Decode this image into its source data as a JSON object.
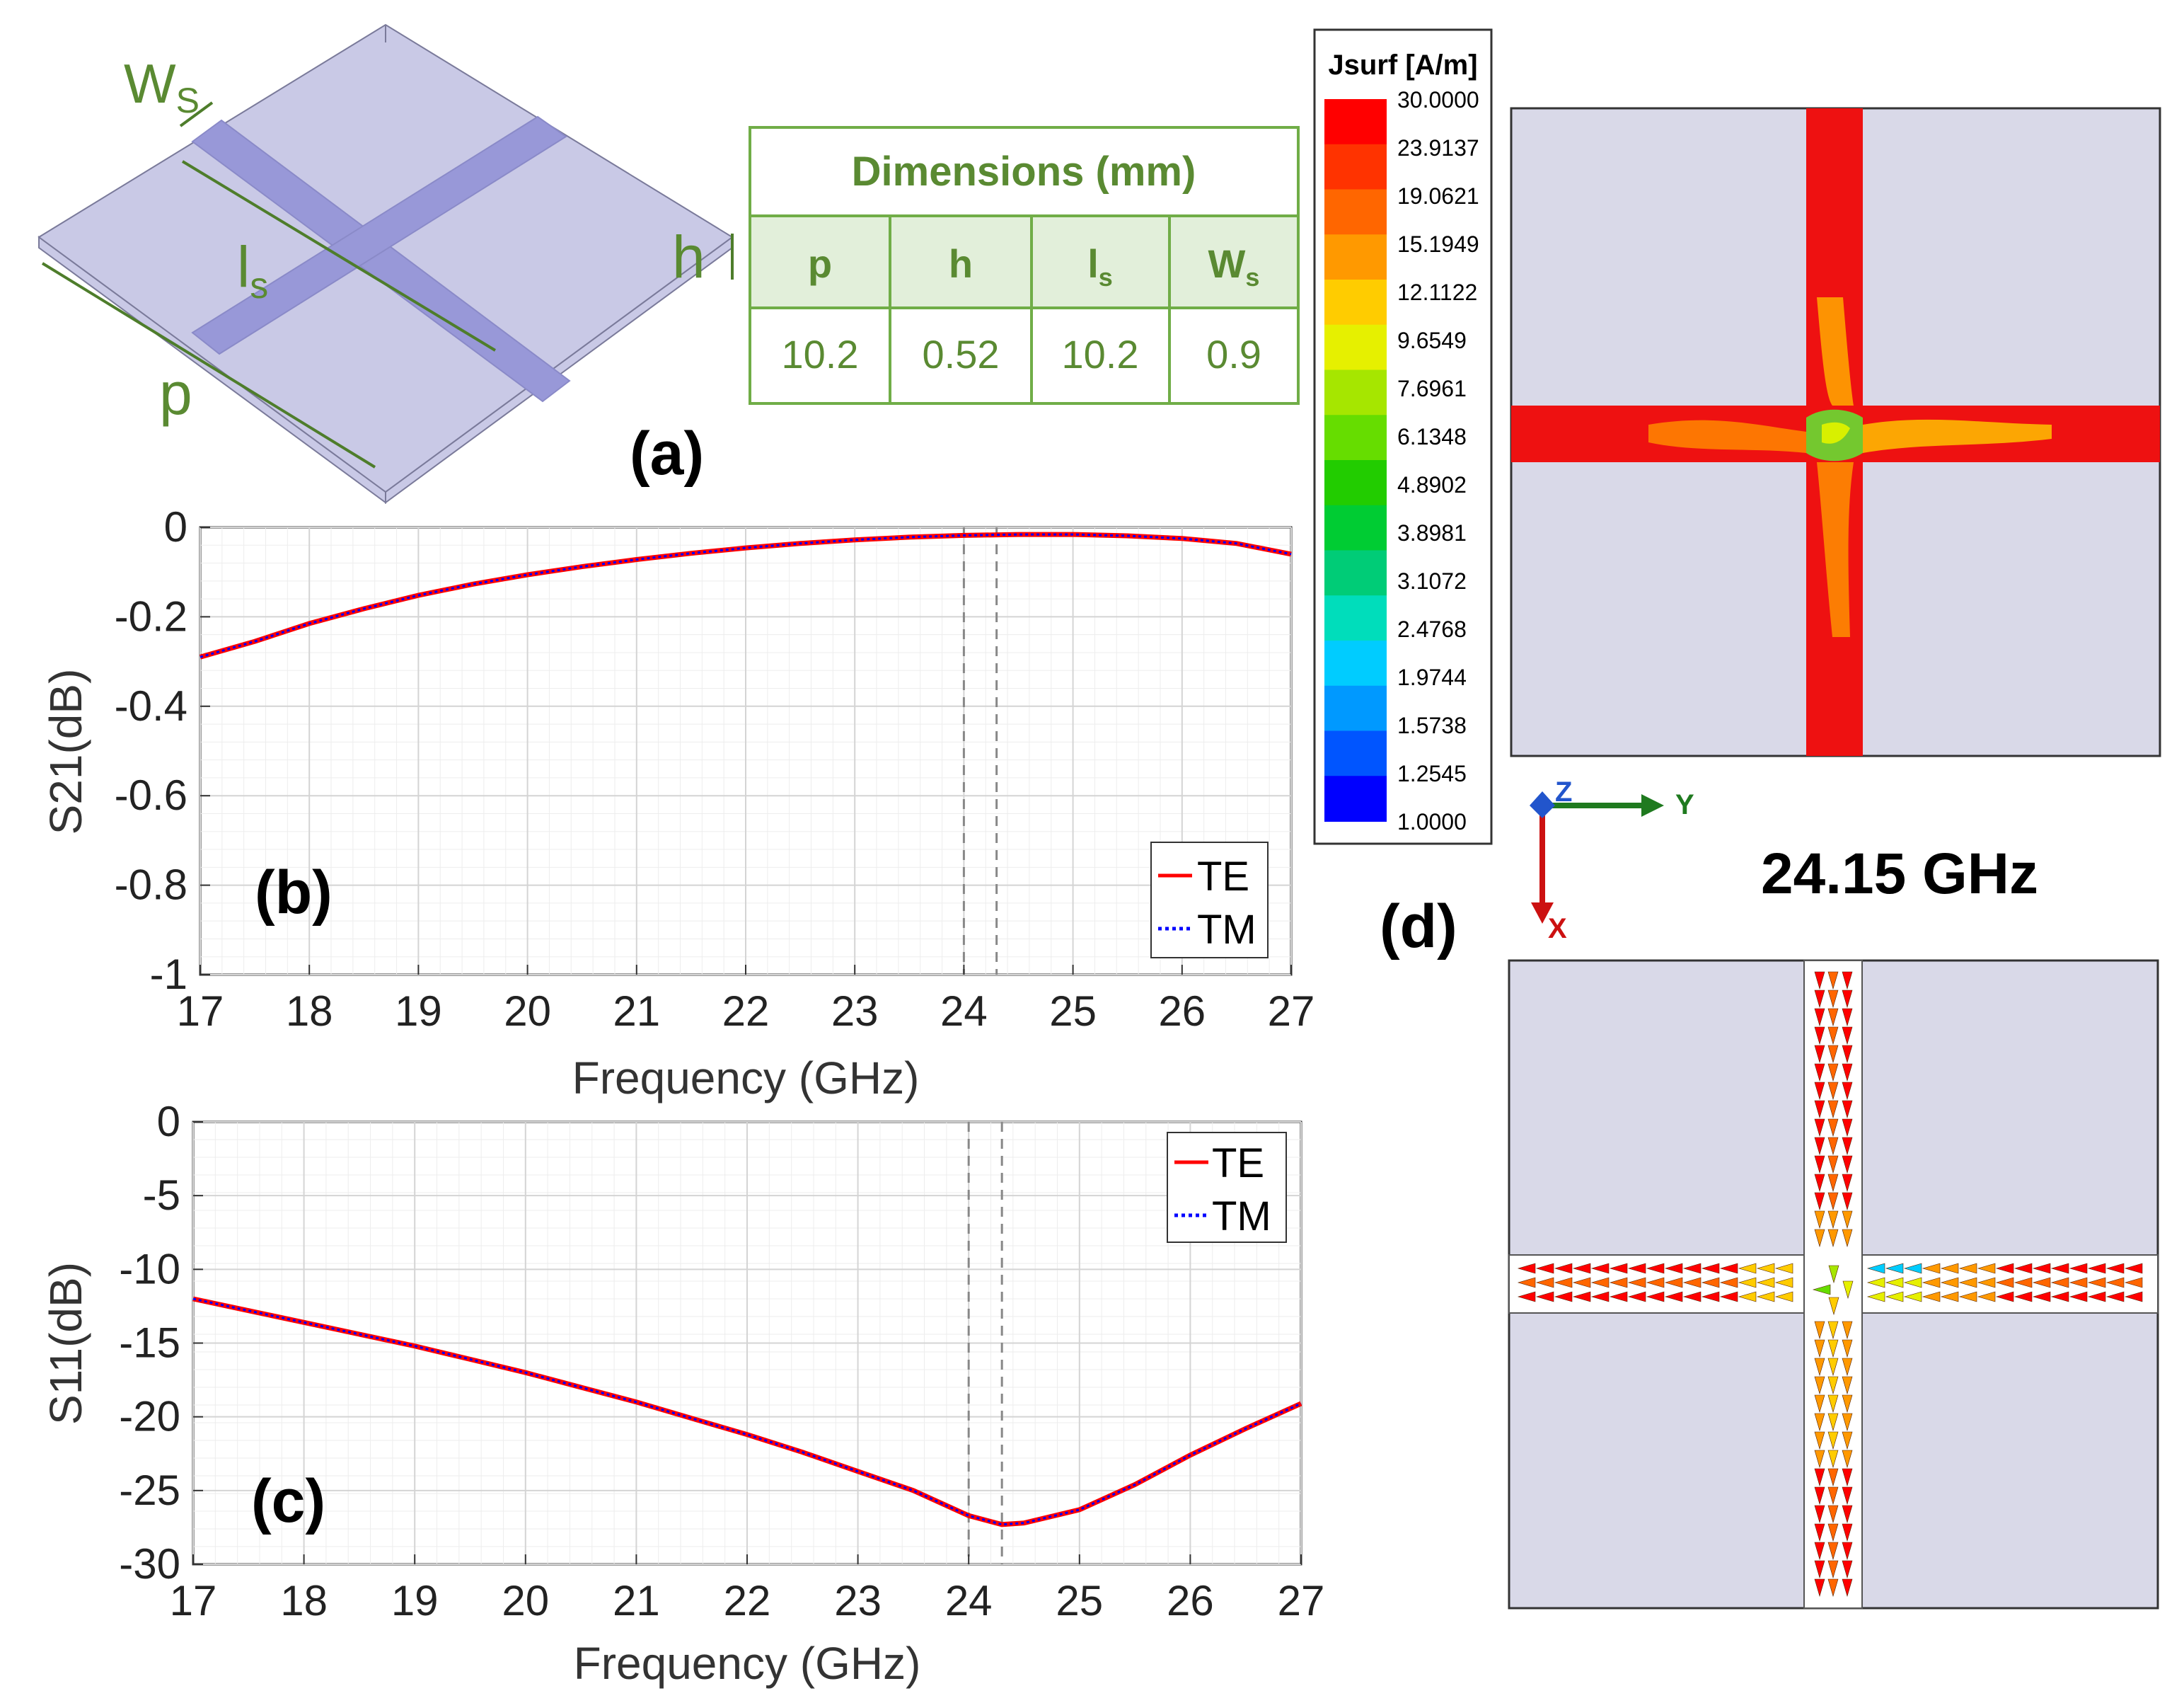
{
  "panel_a": {
    "label": "(a)",
    "dims": {
      "ws": "W",
      "ws_sub": "S",
      "ls": "l",
      "ls_sub": "s",
      "h": "h",
      "p": "p"
    },
    "table": {
      "title": "Dimensions (mm)",
      "headers": [
        {
          "main": "p",
          "sub": ""
        },
        {
          "main": "h",
          "sub": ""
        },
        {
          "main": "l",
          "sub": "s"
        },
        {
          "main": "W",
          "sub": "s"
        }
      ],
      "values": [
        "10.2",
        "0.52",
        "10.2",
        "0.9"
      ]
    }
  },
  "chart_data": [
    {
      "id": "b",
      "label": "(b)",
      "type": "line",
      "title": "",
      "xlabel": "Frequency (GHz)",
      "ylabel": "S21(dB)",
      "xlim": [
        17,
        27
      ],
      "ylim": [
        -1,
        0
      ],
      "xticks": [
        "17",
        "18",
        "19",
        "20",
        "21",
        "22",
        "23",
        "24",
        "25",
        "26",
        "27"
      ],
      "yticks": [
        "0",
        "-0.2",
        "-0.4",
        "-0.6",
        "-0.8",
        "-1"
      ],
      "grid": true,
      "legend_position": "bottom-right",
      "vlines": [
        24.0,
        24.3
      ],
      "x": [
        17,
        17.5,
        18,
        18.5,
        19,
        19.5,
        20,
        20.5,
        21,
        21.5,
        22,
        22.5,
        23,
        23.5,
        24,
        24.5,
        25,
        25.5,
        26,
        26.5,
        27
      ],
      "series": [
        {
          "name": "TE",
          "color": "#ff0000",
          "dash": "solid",
          "values": [
            -0.29,
            -0.255,
            -0.215,
            -0.182,
            -0.152,
            -0.127,
            -0.106,
            -0.088,
            -0.072,
            -0.058,
            -0.046,
            -0.036,
            -0.028,
            -0.022,
            -0.018,
            -0.016,
            -0.016,
            -0.019,
            -0.025,
            -0.036,
            -0.06
          ]
        },
        {
          "name": "TM",
          "color": "#0000ff",
          "dash": "dotted",
          "values": [
            -0.29,
            -0.255,
            -0.215,
            -0.182,
            -0.152,
            -0.127,
            -0.106,
            -0.088,
            -0.072,
            -0.058,
            -0.046,
            -0.036,
            -0.028,
            -0.022,
            -0.018,
            -0.016,
            -0.016,
            -0.019,
            -0.025,
            -0.036,
            -0.06
          ]
        }
      ]
    },
    {
      "id": "c",
      "label": "(c)",
      "type": "line",
      "title": "",
      "xlabel": "Frequency (GHz)",
      "ylabel": "S11(dB)",
      "xlim": [
        17,
        27
      ],
      "ylim": [
        -30,
        0
      ],
      "xticks": [
        "17",
        "18",
        "19",
        "20",
        "21",
        "22",
        "23",
        "24",
        "25",
        "26",
        "27"
      ],
      "yticks": [
        "0",
        "-5",
        "-10",
        "-15",
        "-20",
        "-25",
        "-30"
      ],
      "grid": true,
      "legend_position": "top-right",
      "vlines": [
        24.0,
        24.3
      ],
      "x": [
        17,
        17.5,
        18,
        18.5,
        19,
        19.5,
        20,
        20.5,
        21,
        21.5,
        22,
        22.5,
        23,
        23.5,
        24,
        24.3,
        24.5,
        25,
        25.5,
        26,
        26.5,
        27
      ],
      "series": [
        {
          "name": "TE",
          "color": "#ff0000",
          "dash": "solid",
          "values": [
            -12.0,
            -12.8,
            -13.6,
            -14.4,
            -15.2,
            -16.1,
            -17.0,
            -18.0,
            -19.0,
            -20.1,
            -21.2,
            -22.4,
            -23.7,
            -25.0,
            -26.7,
            -27.3,
            -27.2,
            -26.3,
            -24.6,
            -22.6,
            -20.8,
            -19.1
          ]
        },
        {
          "name": "TM",
          "color": "#0000ff",
          "dash": "dotted",
          "values": [
            -12.0,
            -12.8,
            -13.6,
            -14.4,
            -15.2,
            -16.1,
            -17.0,
            -18.0,
            -19.0,
            -20.1,
            -21.2,
            -22.4,
            -23.7,
            -25.0,
            -26.7,
            -27.3,
            -27.2,
            -26.3,
            -24.6,
            -22.6,
            -20.8,
            -19.1
          ]
        }
      ]
    }
  ],
  "panel_d": {
    "label": "(d)",
    "frequency": "24.15 GHz",
    "colorbar": {
      "title": "Jsurf [A/m]",
      "ticks": [
        "30.0000",
        "23.9137",
        "19.0621",
        "15.1949",
        "12.1122",
        "9.6549",
        "7.6961",
        "6.1348",
        "4.8902",
        "3.8981",
        "3.1072",
        "2.4768",
        "1.9744",
        "1.5738",
        "1.2545",
        "1.0000"
      ],
      "colors": [
        "#ff0000",
        "#ff3300",
        "#ff6600",
        "#ff9900",
        "#ffcc00",
        "#e6f000",
        "#a6e600",
        "#66dd00",
        "#22cc00",
        "#00cc33",
        "#00cc77",
        "#00ddbb",
        "#00ccff",
        "#0099ff",
        "#0055ff",
        "#0000ff"
      ]
    },
    "axes": {
      "z": "Z",
      "y": "Y",
      "x": "X"
    }
  }
}
